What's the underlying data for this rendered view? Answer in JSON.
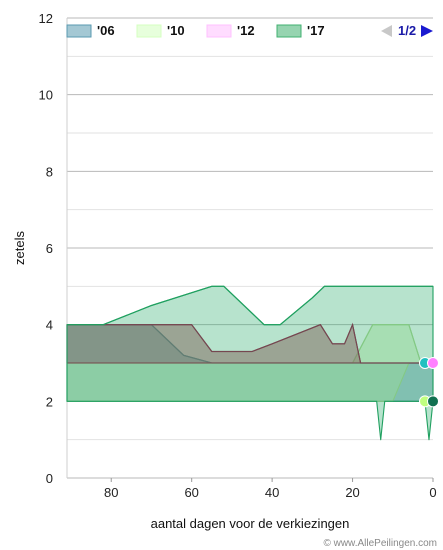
{
  "chart_data": {
    "type": "area",
    "xlabel": "aantal dagen voor de verkiezingen",
    "ylabel": "zetels",
    "xlim": [
      91,
      0
    ],
    "ylim": [
      0,
      12
    ],
    "x_ticks": [
      80,
      60,
      40,
      20,
      0
    ],
    "y_ticks": [
      0,
      2,
      4,
      6,
      8,
      10,
      12
    ],
    "grid": "horizontal",
    "legend_position": "top",
    "legend": [
      {
        "label": "'06",
        "color": "#5a9ab0"
      },
      {
        "label": "'10",
        "color": "#d4ffc0"
      },
      {
        "label": "'12",
        "color": "#ffc0ff"
      },
      {
        "label": "'17",
        "color": "#40b070"
      }
    ],
    "pagination": "1/2",
    "credit": "© www.AllePeilingen.com",
    "series": [
      {
        "name": "'06",
        "fill": "#4a8aa0",
        "stroke": "#3a7a90",
        "opacity": 0.45,
        "upper": [
          [
            91,
            4
          ],
          [
            75,
            4
          ],
          [
            70,
            4
          ],
          [
            62,
            3.2
          ],
          [
            55,
            3
          ],
          [
            50,
            3
          ],
          [
            45,
            3
          ],
          [
            40,
            3
          ],
          [
            35,
            3
          ],
          [
            30,
            3
          ],
          [
            25,
            3
          ],
          [
            20,
            3
          ],
          [
            15,
            3
          ],
          [
            10,
            3
          ],
          [
            5,
            3
          ],
          [
            2,
            3
          ],
          [
            0,
            3
          ]
        ],
        "lower": [
          [
            91,
            2
          ],
          [
            85,
            2
          ],
          [
            80,
            2
          ],
          [
            75,
            2
          ],
          [
            70,
            2
          ],
          [
            62,
            2
          ],
          [
            55,
            2
          ],
          [
            50,
            2
          ],
          [
            45,
            2
          ],
          [
            40,
            2
          ],
          [
            35,
            2
          ],
          [
            30,
            2
          ],
          [
            25,
            2
          ],
          [
            20,
            2
          ],
          [
            15,
            2
          ],
          [
            10,
            2
          ],
          [
            5,
            2
          ],
          [
            2,
            2
          ],
          [
            0,
            2
          ]
        ]
      },
      {
        "name": "'10",
        "fill": "#d0f0b0",
        "stroke": "#b0d890",
        "opacity": 0.5,
        "upper": [
          [
            91,
            3
          ],
          [
            80,
            3
          ],
          [
            70,
            3
          ],
          [
            60,
            3
          ],
          [
            55,
            3
          ],
          [
            50,
            3
          ],
          [
            40,
            3
          ],
          [
            30,
            3
          ],
          [
            20,
            3
          ],
          [
            15,
            4
          ],
          [
            10,
            4
          ],
          [
            6,
            4
          ],
          [
            3,
            3
          ],
          [
            0,
            3
          ]
        ],
        "lower": [
          [
            91,
            2
          ],
          [
            80,
            2
          ],
          [
            70,
            2
          ],
          [
            60,
            2
          ],
          [
            50,
            2
          ],
          [
            40,
            2
          ],
          [
            30,
            2
          ],
          [
            20,
            2
          ],
          [
            15,
            2
          ],
          [
            10,
            2
          ],
          [
            6,
            3
          ],
          [
            3,
            3
          ],
          [
            0,
            3
          ]
        ]
      },
      {
        "name": "'12",
        "fill": "#b05060",
        "stroke": "#9a1040",
        "opacity": 0.55,
        "upper": [
          [
            91,
            4
          ],
          [
            80,
            4
          ],
          [
            70,
            4
          ],
          [
            60,
            4
          ],
          [
            55,
            3.3
          ],
          [
            50,
            3.3
          ],
          [
            45,
            3.3
          ],
          [
            40,
            3.5
          ],
          [
            28,
            4
          ],
          [
            25,
            3.5
          ],
          [
            22,
            3.5
          ],
          [
            20,
            4
          ],
          [
            18,
            3
          ],
          [
            15,
            3
          ],
          [
            10,
            3
          ],
          [
            5,
            3
          ],
          [
            0,
            3
          ]
        ],
        "lower": [
          [
            91,
            3
          ],
          [
            80,
            3
          ],
          [
            70,
            3
          ],
          [
            60,
            3
          ],
          [
            55,
            3
          ],
          [
            50,
            3
          ],
          [
            45,
            3
          ],
          [
            40,
            3
          ],
          [
            30,
            3
          ],
          [
            25,
            3
          ],
          [
            20,
            3
          ],
          [
            18,
            3
          ],
          [
            15,
            3
          ],
          [
            10,
            3
          ],
          [
            5,
            3
          ],
          [
            0,
            3
          ]
        ]
      },
      {
        "name": "'17",
        "fill": "#30b070",
        "stroke": "#20a060",
        "opacity": 0.35,
        "upper": [
          [
            91,
            4
          ],
          [
            82,
            4
          ],
          [
            70,
            4.5
          ],
          [
            55,
            5
          ],
          [
            52,
            5
          ],
          [
            42,
            4
          ],
          [
            38,
            4
          ],
          [
            30,
            4.7
          ],
          [
            27,
            5
          ],
          [
            20,
            5
          ],
          [
            10,
            5
          ],
          [
            5,
            5
          ],
          [
            0,
            5
          ]
        ],
        "lower": [
          [
            91,
            2
          ],
          [
            80,
            2
          ],
          [
            70,
            2
          ],
          [
            60,
            2
          ],
          [
            50,
            2
          ],
          [
            40,
            2
          ],
          [
            30,
            2
          ],
          [
            20,
            2
          ],
          [
            14,
            2
          ],
          [
            13,
            1
          ],
          [
            12,
            2
          ],
          [
            10,
            2
          ],
          [
            5,
            2
          ],
          [
            2,
            2
          ],
          [
            1,
            1
          ],
          [
            0,
            2
          ]
        ]
      }
    ],
    "endpoints": [
      {
        "series": "'06",
        "x": 0,
        "y": 3,
        "color": "#20c0c0"
      },
      {
        "series": "'12",
        "x": 0,
        "y": 3,
        "color": "#ff80ff"
      },
      {
        "series": "'10",
        "x": 0,
        "y": 2,
        "color": "#c0ff80"
      },
      {
        "series": "'17",
        "x": 0,
        "y": 2,
        "color": "#107050"
      }
    ]
  }
}
